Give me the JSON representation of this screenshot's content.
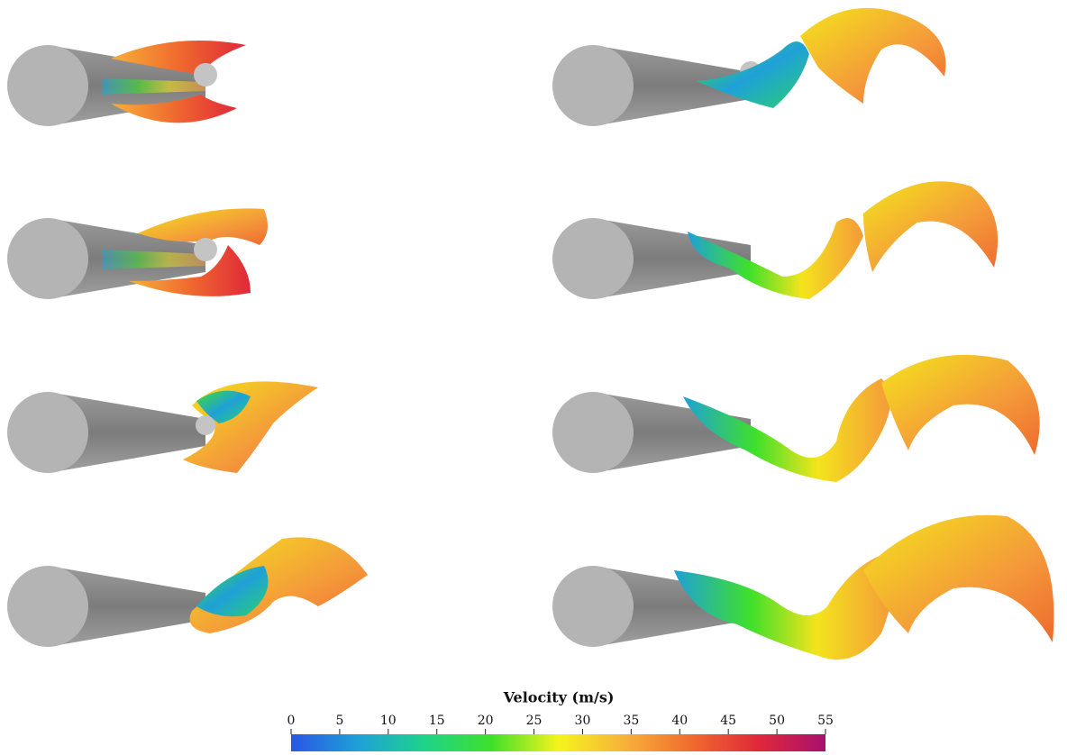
{
  "colorbar": {
    "title": "Velocity (m/s)",
    "lim": [
      0,
      55
    ],
    "ticks": [
      0,
      5,
      10,
      15,
      20,
      25,
      30,
      35,
      40,
      45,
      50,
      55
    ],
    "colors": [
      "#2a56e6",
      "#1fa0d8",
      "#1ed38a",
      "#3fe02a",
      "#f4f41c",
      "#f7b13a",
      "#f06a2e",
      "#e0283a",
      "#a8106e"
    ]
  }
}
